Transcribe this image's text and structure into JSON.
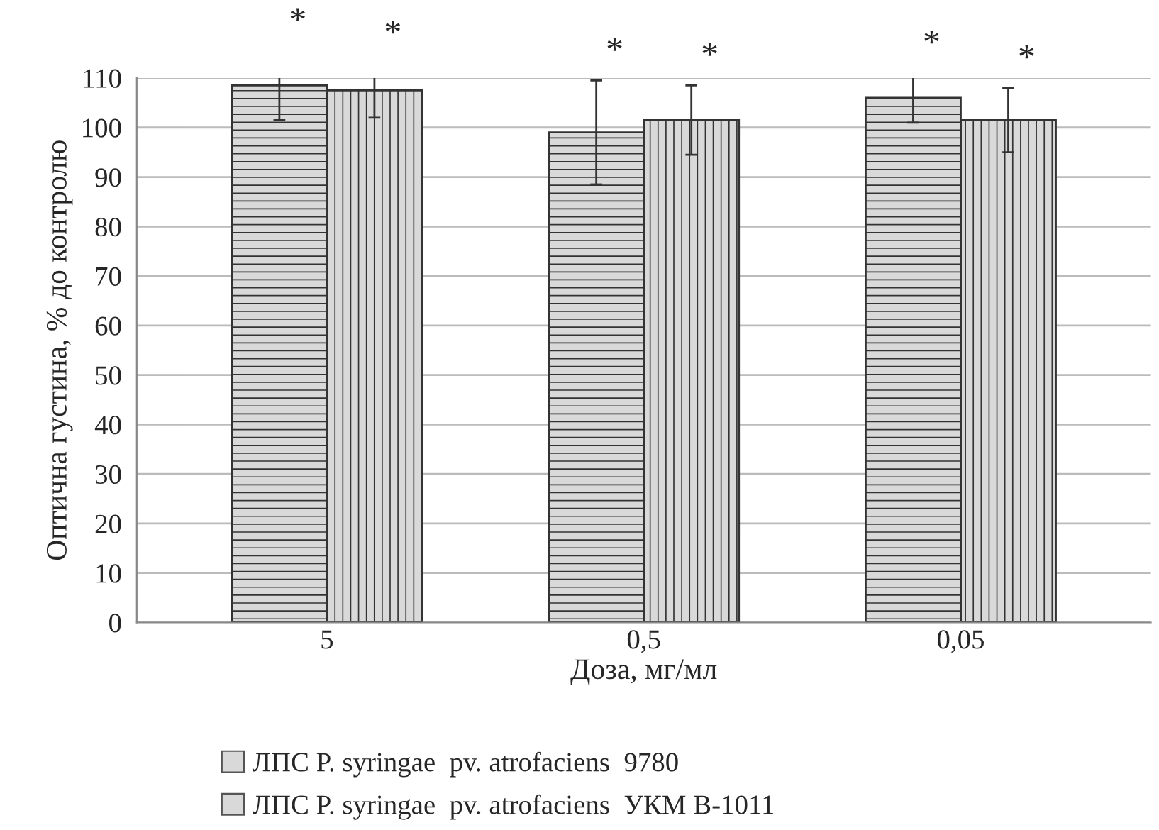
{
  "chart_data": {
    "type": "bar",
    "xlabel": "Доза, мг/мл",
    "ylabel": "Оптична густина, % до контролю",
    "categories": [
      "5",
      "0,5",
      "0,05"
    ],
    "series": [
      {
        "name": "ЛПС P. syringae  pv. atrofaciens  9780",
        "color": "#d9d9d9",
        "values": [
          108.5,
          99,
          106
        ],
        "errors": [
          7,
          10.5,
          5
        ],
        "value_labels": [
          "*",
          "*",
          "*"
        ]
      },
      {
        "name": "ЛПС P. syringae  pv. atrofaciens  УКМ В-1011",
        "color": "#d9d9d9",
        "values": [
          107.5,
          101.5,
          101.5
        ],
        "errors": [
          5.5,
          7,
          6.5
        ],
        "value_labels": [
          "*",
          "*",
          "*"
        ]
      }
    ],
    "ylim": [
      0,
      110
    ],
    "yticks": [
      0,
      10,
      20,
      30,
      40,
      50,
      60,
      70,
      80,
      90,
      100,
      110
    ],
    "grid": "y",
    "legend": "bottom"
  }
}
